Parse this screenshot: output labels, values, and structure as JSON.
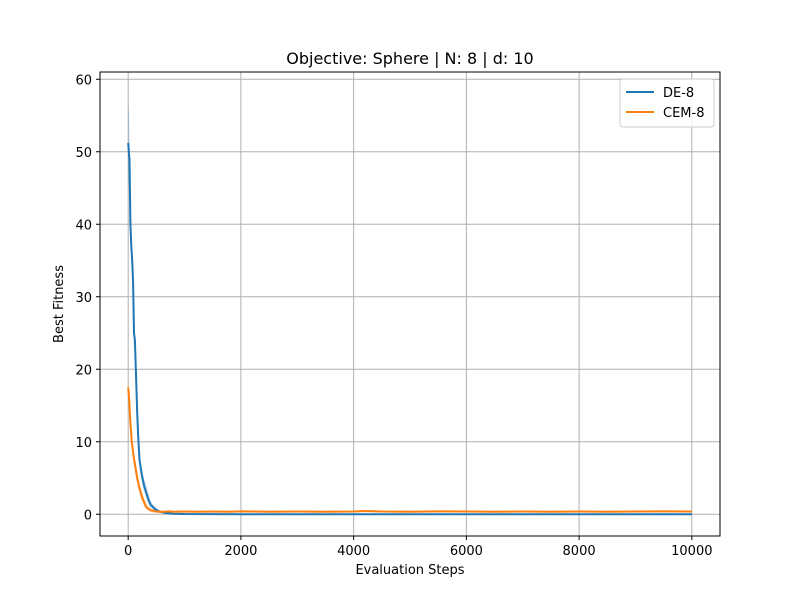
{
  "chart_data": {
    "type": "line",
    "title": "Objective: Sphere | N: 8 | d: 10",
    "xlabel": "Evaluation Steps",
    "ylabel": "Best Fitness",
    "xlim": [
      -500,
      10500
    ],
    "ylim": [
      -3,
      61
    ],
    "xticks": [
      0,
      2000,
      4000,
      6000,
      8000,
      10000
    ],
    "xtick_labels": [
      "0",
      "2000",
      "4000",
      "6000",
      "8000",
      "10000"
    ],
    "yticks": [
      0,
      10,
      20,
      30,
      40,
      50,
      60
    ],
    "ytick_labels": [
      "0",
      "10",
      "20",
      "30",
      "40",
      "50",
      "60"
    ],
    "grid": true,
    "legend_position": "top-right",
    "series": [
      {
        "name": "DE-8",
        "color": "#1f77b4",
        "band_color": "#1f77b4",
        "x": [
          0,
          16,
          24,
          40,
          56,
          72,
          88,
          104,
          120,
          144,
          160,
          176,
          200,
          240,
          280,
          320,
          360,
          400,
          480,
          560,
          640,
          720,
          800,
          1000,
          1500,
          2000,
          3000,
          4000,
          5000,
          6000,
          7000,
          8000,
          9000,
          10000
        ],
        "y": [
          51.2,
          49.5,
          49,
          40,
          37,
          35,
          32,
          25,
          24,
          18,
          14,
          11,
          7.5,
          5.5,
          4,
          3,
          2,
          1.3,
          0.7,
          0.35,
          0.2,
          0.12,
          0.08,
          0.04,
          0.02,
          0.01,
          0.01,
          0.01,
          0.01,
          0.01,
          0.01,
          0.01,
          0.01,
          0.01
        ],
        "upper": [
          57,
          55,
          52,
          43,
          40,
          37,
          34,
          27,
          25,
          19.5,
          15.5,
          12,
          8.5,
          6.5,
          5,
          4,
          2.8,
          1.8,
          1.0,
          0.5,
          0.3,
          0.2,
          0.12,
          0.06,
          0.03,
          0.02,
          0.02,
          0.02,
          0.02,
          0.02,
          0.02,
          0.02,
          0.02,
          0.02
        ],
        "lower": [
          46,
          45,
          46,
          37.5,
          34.5,
          33,
          30,
          23,
          22.5,
          16.5,
          12.5,
          10,
          6.5,
          4.5,
          3.2,
          2.2,
          1.4,
          0.9,
          0.45,
          0.2,
          0.1,
          0.06,
          0.04,
          0.02,
          0.01,
          0.005,
          0.005,
          0.005,
          0.005,
          0.005,
          0.005,
          0.005,
          0.005,
          0.005
        ]
      },
      {
        "name": "CEM-8",
        "color": "#ff7f0e",
        "band_color": "#ff7f0e",
        "x": [
          0,
          16,
          40,
          64,
          96,
          128,
          160,
          200,
          240,
          280,
          320,
          400,
          480,
          560,
          640,
          720,
          800,
          1000,
          1200,
          1500,
          1800,
          2000,
          2500,
          3000,
          3500,
          4000,
          4200,
          4500,
          5000,
          5500,
          6000,
          6500,
          7000,
          7500,
          8000,
          8500,
          9000,
          9500,
          10000
        ],
        "y": [
          17.5,
          16,
          12.5,
          10,
          8,
          6.5,
          5,
          3.6,
          2.5,
          1.7,
          1.0,
          0.55,
          0.4,
          0.35,
          0.35,
          0.4,
          0.35,
          0.38,
          0.35,
          0.38,
          0.35,
          0.4,
          0.35,
          0.38,
          0.35,
          0.38,
          0.45,
          0.38,
          0.35,
          0.4,
          0.38,
          0.35,
          0.38,
          0.35,
          0.38,
          0.35,
          0.38,
          0.4,
          0.38
        ],
        "upper": [
          18.5,
          17,
          13.5,
          11,
          9,
          7.5,
          6,
          4.4,
          3.2,
          2.3,
          1.5,
          0.8,
          0.6,
          0.5,
          0.5,
          0.55,
          0.5,
          0.52,
          0.5,
          0.52,
          0.5,
          0.55,
          0.5,
          0.52,
          0.5,
          0.52,
          0.6,
          0.52,
          0.5,
          0.55,
          0.52,
          0.5,
          0.52,
          0.5,
          0.52,
          0.5,
          0.52,
          0.55,
          0.52
        ],
        "lower": [
          16.5,
          15,
          11.5,
          9,
          7,
          5.5,
          4,
          2.8,
          1.8,
          1.1,
          0.6,
          0.3,
          0.22,
          0.2,
          0.2,
          0.25,
          0.2,
          0.24,
          0.2,
          0.24,
          0.2,
          0.25,
          0.2,
          0.24,
          0.2,
          0.24,
          0.3,
          0.24,
          0.2,
          0.25,
          0.24,
          0.2,
          0.24,
          0.2,
          0.24,
          0.2,
          0.24,
          0.25,
          0.24
        ]
      }
    ]
  }
}
